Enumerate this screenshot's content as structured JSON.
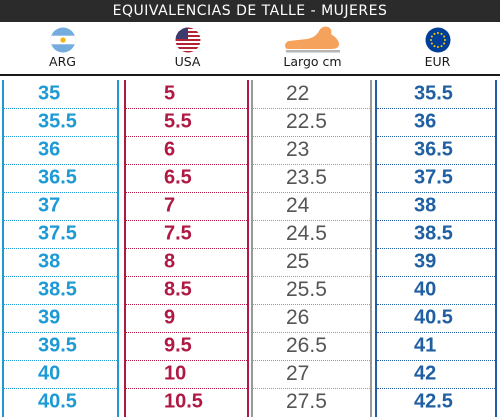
{
  "title": "EQUIVALENCIAS DE TALLE - MUJERES",
  "columns": [
    {
      "key": "arg",
      "label": "ARG",
      "icon": "argentina-flag-icon",
      "color": "#1d9ad6"
    },
    {
      "key": "usa",
      "label": "USA",
      "icon": "usa-flag-icon",
      "color": "#b01943"
    },
    {
      "key": "cm",
      "label": "Largo cm",
      "icon": "foot-icon",
      "color": "#555555"
    },
    {
      "key": "eur",
      "label": "EUR",
      "icon": "eu-flag-icon",
      "color": "#1f5fa2"
    }
  ],
  "rows": [
    {
      "arg": "35",
      "usa": "5",
      "cm": "22",
      "eur": "35.5"
    },
    {
      "arg": "35.5",
      "usa": "5.5",
      "cm": "22.5",
      "eur": "36"
    },
    {
      "arg": "36",
      "usa": "6",
      "cm": "23",
      "eur": "36.5"
    },
    {
      "arg": "36.5",
      "usa": "6.5",
      "cm": "23.5",
      "eur": "37.5"
    },
    {
      "arg": "37",
      "usa": "7",
      "cm": "24",
      "eur": "38"
    },
    {
      "arg": "37.5",
      "usa": "7.5",
      "cm": "24.5",
      "eur": "38.5"
    },
    {
      "arg": "38",
      "usa": "8",
      "cm": "25",
      "eur": "39"
    },
    {
      "arg": "38.5",
      "usa": "8.5",
      "cm": "25.5",
      "eur": "40"
    },
    {
      "arg": "39",
      "usa": "9",
      "cm": "26",
      "eur": "40.5"
    },
    {
      "arg": "39.5",
      "usa": "9.5",
      "cm": "26.5",
      "eur": "41"
    },
    {
      "arg": "40",
      "usa": "10",
      "cm": "27",
      "eur": "42"
    },
    {
      "arg": "40.5",
      "usa": "10.5",
      "cm": "27.5",
      "eur": "42.5"
    }
  ]
}
